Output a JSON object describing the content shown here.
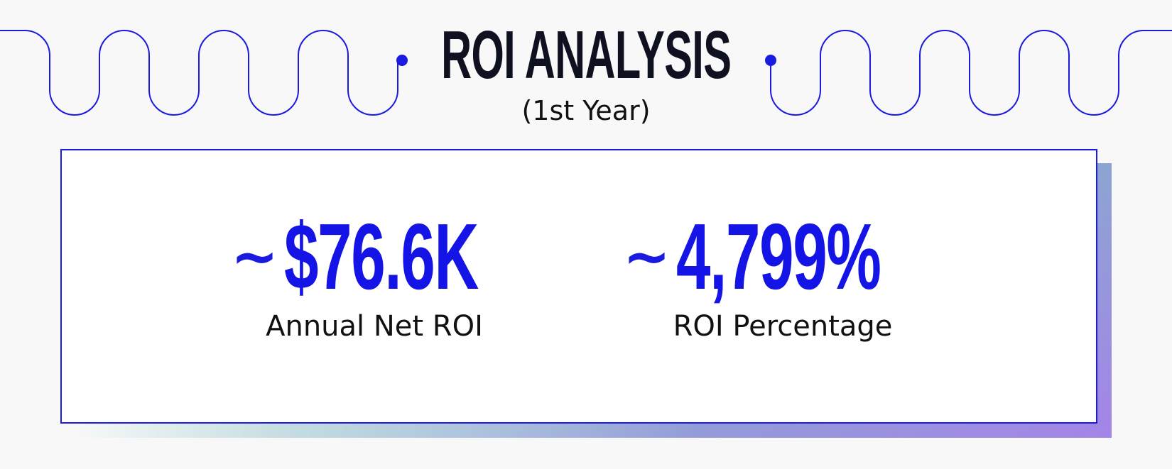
{
  "header": {
    "title": "ROI ANALYSIS",
    "subtitle": "(1st Year)"
  },
  "metrics": [
    {
      "prefix": "~",
      "value": "$76.6K",
      "label": "Annual Net ROI"
    },
    {
      "prefix": "~",
      "value": "4,799%",
      "label": "ROI Percentage"
    }
  ],
  "colors": {
    "accent": "#1414e6",
    "title": "#0f1020",
    "background": "#f8f8f9",
    "gradient_start": "#00f060",
    "gradient_end": "#a484e8"
  }
}
